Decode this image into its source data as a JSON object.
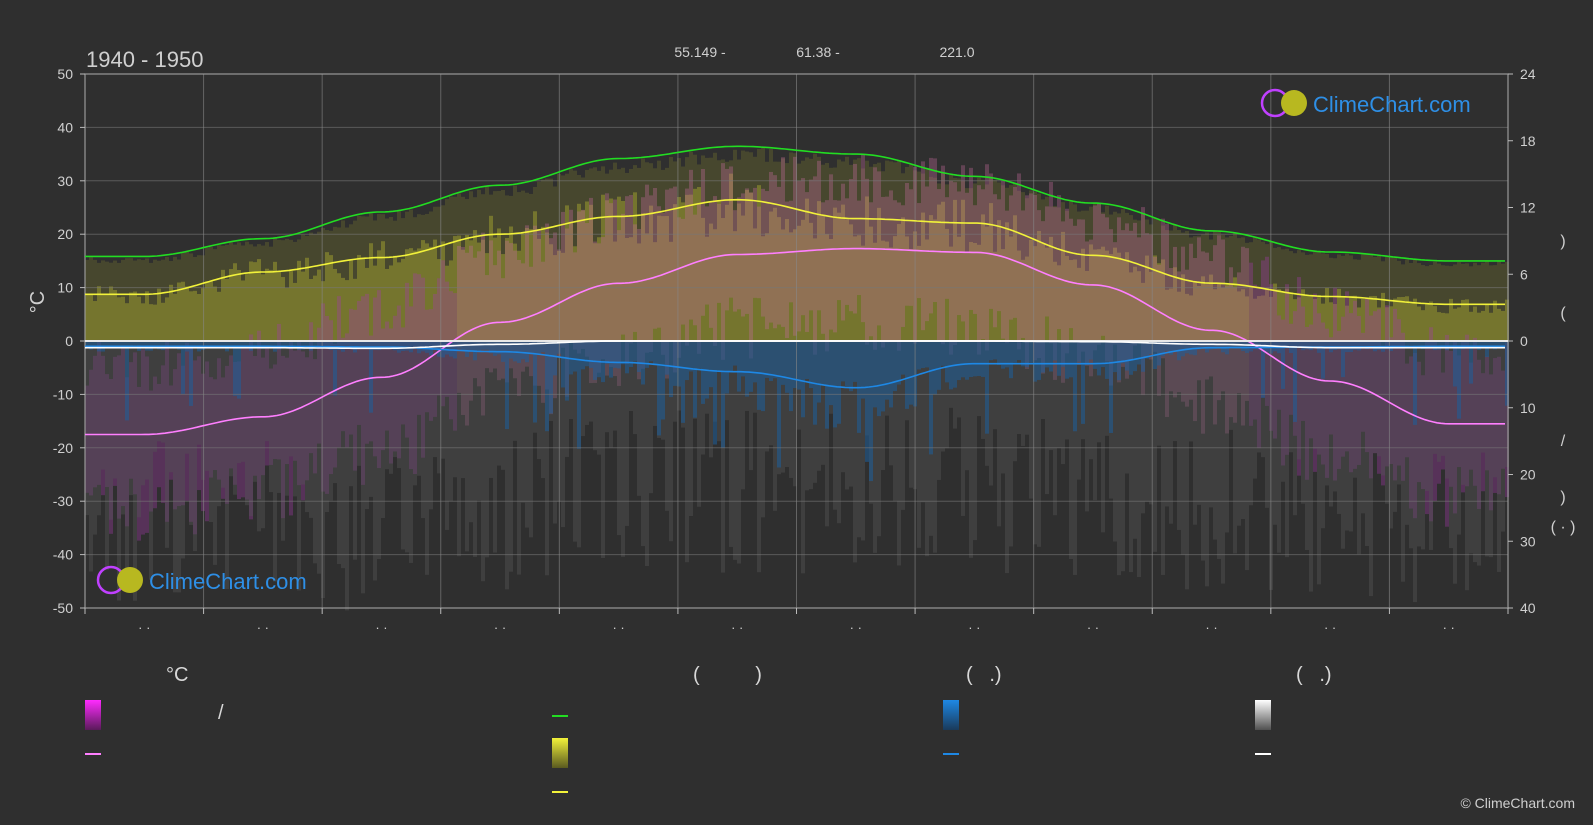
{
  "header": {
    "period": "1940 - 1950",
    "coord_lat": "55.149 -",
    "coord_lon": "61.38 -",
    "elevation": "221.0"
  },
  "brand": {
    "logo_text": "ClimeChart.com",
    "copyright": "© ClimeChart.com"
  },
  "legend": {
    "col1_header": "°C",
    "col2_header": "(          )",
    "col3_header": "(   .)",
    "col4_header": "(   .)",
    "col1_range_sep": "/"
  },
  "colors": {
    "background": "#2f2f2f",
    "temperature_max": "#ff7fff",
    "daylight": "#22dd22",
    "sunshine": "#f2f23a",
    "precipitation": "#1e88e5",
    "snow": "#ffffff",
    "logo": "#2e8fe6"
  },
  "chart_data": {
    "type": "line",
    "x_tick_labels": [
      "· ·",
      "· ·",
      "· ·",
      "· ·",
      "· ·",
      "· ·",
      "· ·",
      "· ·",
      "· ·",
      "· ·",
      "· ·",
      "· ·"
    ],
    "left_axis": {
      "unit": "°C",
      "range": [
        -50,
        50
      ],
      "ticks": [
        50,
        40,
        30,
        20,
        10,
        0,
        -10,
        -20,
        -30,
        -40,
        -50
      ]
    },
    "right_axis_top": {
      "range": [
        0,
        24
      ],
      "ticks": [
        24,
        18,
        12,
        6,
        0
      ]
    },
    "right_axis_bottom": {
      "range": [
        0,
        40
      ],
      "ticks": [
        10,
        20,
        30,
        40
      ]
    },
    "grid": true,
    "series": [
      {
        "key": "daylight_hours",
        "values": [
          7.6,
          9.2,
          11.6,
          14.0,
          16.4,
          17.5,
          16.8,
          14.8,
          12.4,
          9.9,
          8.0,
          7.2
        ]
      },
      {
        "key": "sunshine_hours",
        "values": [
          4.2,
          6.2,
          7.5,
          9.6,
          11.2,
          12.7,
          11.0,
          10.6,
          7.7,
          5.2,
          4.0,
          3.3
        ]
      },
      {
        "key": "temp_mean_c",
        "values": [
          -17.5,
          -14.2,
          -6.8,
          3.5,
          10.8,
          16.2,
          17.3,
          16.6,
          10.5,
          2.0,
          -7.5,
          -15.5
        ]
      },
      {
        "key": "precipitation_mm",
        "values": [
          0.8,
          0.8,
          0.9,
          1.6,
          3.2,
          4.6,
          7.0,
          3.4,
          3.4,
          1.0,
          0.9,
          0.8
        ]
      },
      {
        "key": "snow_mm",
        "values": [
          1.0,
          1.0,
          1.1,
          0.5,
          0.0,
          0.0,
          0.0,
          0.0,
          0.1,
          0.5,
          1.0,
          1.0
        ]
      }
    ]
  }
}
